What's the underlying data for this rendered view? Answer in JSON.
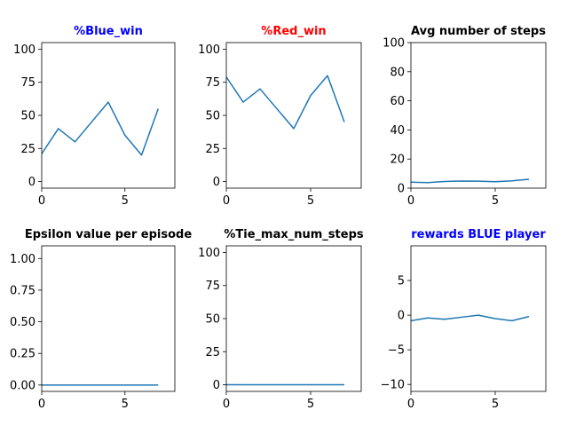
{
  "chart_data": [
    {
      "type": "line",
      "title": "%Blue_win",
      "title_color": "#0000ff",
      "x": [
        0,
        1,
        2,
        3,
        4,
        5,
        6,
        7
      ],
      "series": [
        {
          "color": "#1f77b4",
          "values": [
            21,
            40,
            30,
            45,
            60,
            35,
            20,
            55
          ]
        }
      ],
      "xlim": [
        0,
        8
      ],
      "ylim": [
        -5,
        105
      ],
      "xticks": [
        0,
        5
      ],
      "xtick_labels": [
        "0",
        "5"
      ],
      "yticks": [
        0,
        25,
        50,
        75,
        100
      ],
      "ytick_labels": [
        "0",
        "25",
        "50",
        "75",
        "100"
      ],
      "grid": false
    },
    {
      "type": "line",
      "title": "%Red_win",
      "title_color": "#ff0000",
      "x": [
        0,
        1,
        2,
        3,
        4,
        5,
        6,
        7
      ],
      "series": [
        {
          "color": "#1f77b4",
          "values": [
            79,
            60,
            70,
            55,
            40,
            65,
            80,
            45
          ]
        }
      ],
      "xlim": [
        0,
        8
      ],
      "ylim": [
        -5,
        105
      ],
      "xticks": [
        0,
        5
      ],
      "xtick_labels": [
        "0",
        "5"
      ],
      "yticks": [
        0,
        25,
        50,
        75,
        100
      ],
      "ytick_labels": [
        "0",
        "25",
        "50",
        "75",
        "100"
      ],
      "grid": false
    },
    {
      "type": "line",
      "title": "Avg number of steps",
      "title_color": "#000000",
      "x": [
        0,
        1,
        2,
        3,
        4,
        5,
        6,
        7
      ],
      "series": [
        {
          "color": "#1f77b4",
          "values": [
            4.1,
            3.8,
            4.6,
            4.9,
            4.8,
            4.4,
            5.0,
            6.1
          ]
        }
      ],
      "xlim": [
        0,
        8
      ],
      "ylim": [
        0,
        100
      ],
      "xticks": [
        0,
        5
      ],
      "xtick_labels": [
        "0",
        "5"
      ],
      "yticks": [
        0,
        20,
        40,
        60,
        80,
        100
      ],
      "ytick_labels": [
        "0",
        "20",
        "40",
        "60",
        "80",
        "100"
      ],
      "grid": false
    },
    {
      "type": "line",
      "title": "Epsilon value per episode",
      "title_color": "#000000",
      "x": [
        0,
        1,
        2,
        3,
        4,
        5,
        6,
        7
      ],
      "series": [
        {
          "color": "#1f77b4",
          "values": [
            0,
            0,
            0,
            0,
            0,
            0,
            0,
            0
          ]
        }
      ],
      "xlim": [
        0,
        8
      ],
      "ylim": [
        -0.05,
        1.1
      ],
      "xticks": [
        0,
        5
      ],
      "xtick_labels": [
        "0",
        "5"
      ],
      "yticks": [
        0,
        0.25,
        0.5,
        0.75,
        1.0
      ],
      "ytick_labels": [
        "0.00",
        "0.25",
        "0.50",
        "0.75",
        "1.00"
      ],
      "grid": false
    },
    {
      "type": "line",
      "title": "%Tie_max_num_steps",
      "title_color": "#000000",
      "x": [
        0,
        1,
        2,
        3,
        4,
        5,
        6,
        7
      ],
      "series": [
        {
          "color": "#1f77b4",
          "values": [
            0,
            0,
            0,
            0,
            0,
            0,
            0,
            0
          ]
        }
      ],
      "xlim": [
        0,
        8
      ],
      "ylim": [
        -5,
        105
      ],
      "xticks": [
        0,
        5
      ],
      "xtick_labels": [
        "0",
        "5"
      ],
      "yticks": [
        0,
        25,
        50,
        75,
        100
      ],
      "ytick_labels": [
        "0",
        "25",
        "50",
        "75",
        "100"
      ],
      "grid": false
    },
    {
      "type": "line",
      "title": "rewards BLUE player",
      "title_color": "#0000ff",
      "x": [
        0,
        1,
        2,
        3,
        4,
        5,
        6,
        7
      ],
      "series": [
        {
          "color": "#1f77b4",
          "values": [
            -0.8,
            -0.4,
            -0.6,
            -0.3,
            0.0,
            -0.5,
            -0.8,
            -0.2
          ]
        }
      ],
      "xlim": [
        0,
        8
      ],
      "ylim": [
        -11,
        10
      ],
      "xticks": [
        0,
        5
      ],
      "xtick_labels": [
        "0",
        "5"
      ],
      "yticks": [
        -10,
        -5,
        0,
        5
      ],
      "ytick_labels": [
        "−10",
        "−5",
        "0",
        "5"
      ],
      "grid": false
    }
  ]
}
